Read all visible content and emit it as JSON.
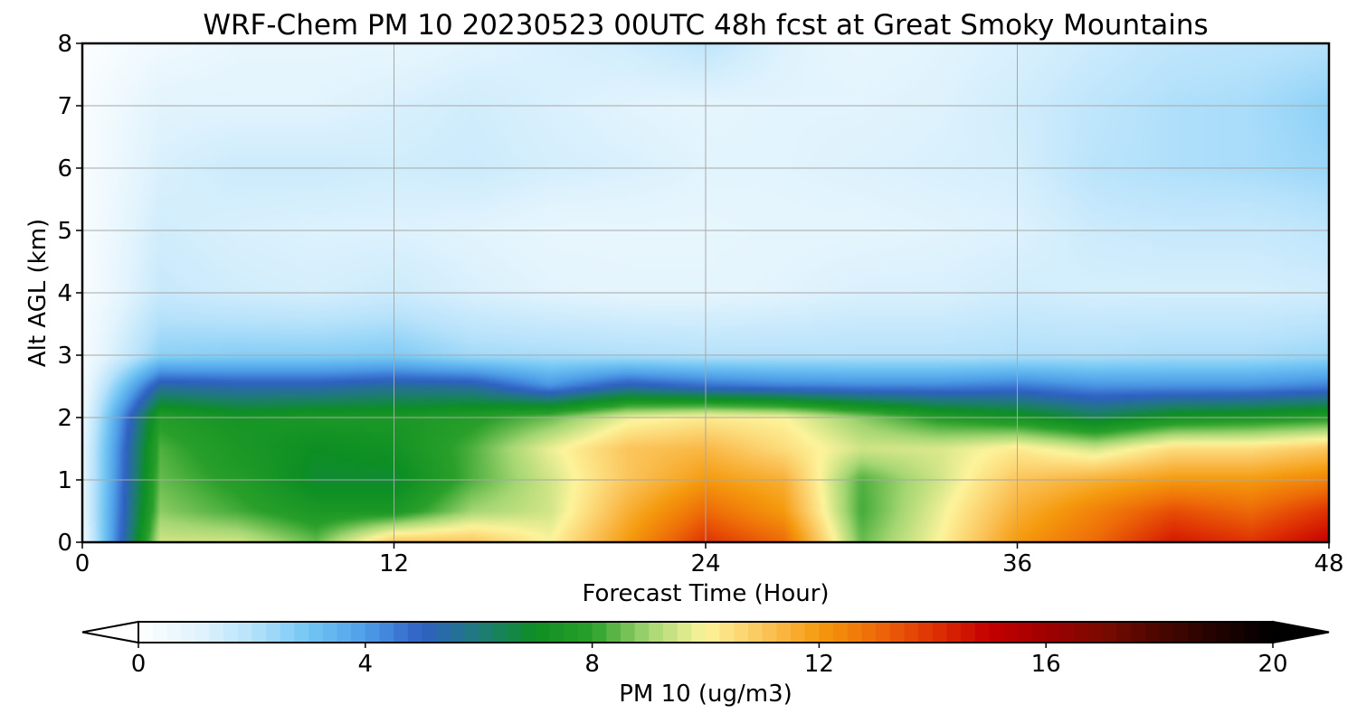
{
  "chart_data": {
    "type": "heatmap",
    "title": "WRF-Chem PM 10  20230523 00UTC 48h fcst at Great Smoky Mountains",
    "xlabel": "Forecast Time (Hour)",
    "ylabel": "Alt AGL (km)",
    "xlim": [
      0,
      48
    ],
    "ylim": [
      0,
      8
    ],
    "x_ticks": [
      "0",
      "12",
      "24",
      "36",
      "48"
    ],
    "y_ticks": [
      "0",
      "1",
      "2",
      "3",
      "4",
      "5",
      "6",
      "7",
      "8"
    ],
    "grid": true,
    "x": [
      0,
      3,
      6,
      9,
      12,
      15,
      18,
      21,
      24,
      27,
      30,
      33,
      36,
      39,
      42,
      45,
      48
    ],
    "y": [
      0,
      0.5,
      1,
      1.5,
      2,
      2.5,
      3,
      4,
      5,
      6,
      7,
      8
    ],
    "z": [
      [
        0.5,
        9.5,
        9.5,
        8.5,
        11,
        11,
        10,
        12,
        14,
        13,
        8.5,
        10,
        12,
        13,
        14.5,
        14,
        15
      ],
      [
        0.8,
        8.8,
        8.2,
        7.5,
        7.5,
        9,
        9.5,
        11.5,
        13,
        12,
        8.2,
        9.8,
        11.5,
        12.5,
        13.5,
        13,
        14
      ],
      [
        0.8,
        8.5,
        7.8,
        6.8,
        6.8,
        8.3,
        9.5,
        11,
        12,
        11.5,
        8.3,
        9.5,
        11,
        11.5,
        12,
        12,
        12.5
      ],
      [
        0.8,
        8.3,
        7.5,
        7,
        7.2,
        8.3,
        9.8,
        11,
        11.3,
        10.5,
        9.5,
        9.6,
        10.2,
        9.5,
        10.5,
        10.5,
        11
      ],
      [
        0.6,
        7.8,
        7.3,
        7.5,
        7.5,
        7.8,
        8.5,
        9.8,
        10.2,
        10,
        8.8,
        7.8,
        7.3,
        6.5,
        7.3,
        7.5,
        7.8
      ],
      [
        0.4,
        5.5,
        5.3,
        5.3,
        5.6,
        5.5,
        4.2,
        5.3,
        4.8,
        4.5,
        4.4,
        4.4,
        4.6,
        4.2,
        4.2,
        4.2,
        4.5
      ],
      [
        0.3,
        2.6,
        2.7,
        2.7,
        2.8,
        2.3,
        2.2,
        2.1,
        2.0,
        2.0,
        2.0,
        2.0,
        2.1,
        2.1,
        2.2,
        2.2,
        2.4
      ],
      [
        0.2,
        1.6,
        1.4,
        1.3,
        1.5,
        1.2,
        1.0,
        0.9,
        0.9,
        1.0,
        1.2,
        1.2,
        1.4,
        1.3,
        1.3,
        1.3,
        1.4
      ],
      [
        0.2,
        1.4,
        1.2,
        1.1,
        1.1,
        1.0,
        0.8,
        0.8,
        0.8,
        0.9,
        0.9,
        1.0,
        1.1,
        1.5,
        1.6,
        1.6,
        1.8
      ],
      [
        0.2,
        1.2,
        1.5,
        1.5,
        1.4,
        1.5,
        1.3,
        1.2,
        1.0,
        1.0,
        1.1,
        1.2,
        1.3,
        1.9,
        2.1,
        2.2,
        2.4
      ],
      [
        0.2,
        1.0,
        1.0,
        1.0,
        1.2,
        1.4,
        1.2,
        1.0,
        0.9,
        1.0,
        1.0,
        1.1,
        1.4,
        1.8,
        2.1,
        2.2,
        2.6
      ],
      [
        0.1,
        0.5,
        0.8,
        0.8,
        0.8,
        1.0,
        1.2,
        1.4,
        1.8,
        1.1,
        0.8,
        1.0,
        1.2,
        1.5,
        1.8,
        1.9,
        2.0
      ]
    ],
    "colorbar": {
      "label": "PM 10  (ug/m3)",
      "ticks": [
        "0",
        "4",
        "8",
        "12",
        "16",
        "20"
      ],
      "range": [
        0,
        20
      ],
      "extend": "both",
      "stops": [
        {
          "v": 0,
          "color": "#ffffff"
        },
        {
          "v": 1,
          "color": "#e2f4fd"
        },
        {
          "v": 2,
          "color": "#b6e2fb"
        },
        {
          "v": 3,
          "color": "#72c6f4"
        },
        {
          "v": 4,
          "color": "#4e9ee8"
        },
        {
          "v": 5,
          "color": "#2f60c4"
        },
        {
          "v": 6,
          "color": "#1f7a7a"
        },
        {
          "v": 7,
          "color": "#0d8f23"
        },
        {
          "v": 8,
          "color": "#2aa02a"
        },
        {
          "v": 9,
          "color": "#a4d672"
        },
        {
          "v": 10,
          "color": "#fdf49c"
        },
        {
          "v": 11,
          "color": "#fbc55c"
        },
        {
          "v": 12,
          "color": "#f59a0e"
        },
        {
          "v": 13,
          "color": "#ee6a08"
        },
        {
          "v": 14,
          "color": "#df3204"
        },
        {
          "v": 15,
          "color": "#c40000"
        },
        {
          "v": 16,
          "color": "#a00000"
        },
        {
          "v": 17,
          "color": "#7a0a00"
        },
        {
          "v": 18,
          "color": "#4a0600"
        },
        {
          "v": 19,
          "color": "#220200"
        },
        {
          "v": 20,
          "color": "#000000"
        }
      ]
    }
  }
}
